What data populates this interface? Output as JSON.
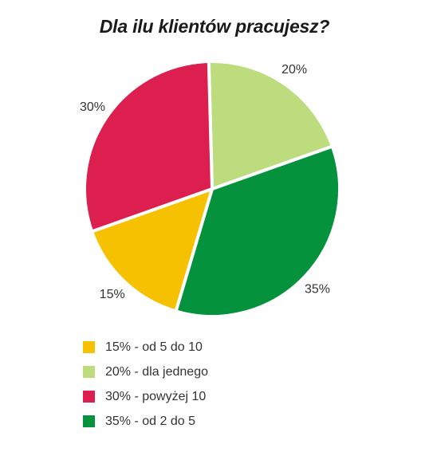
{
  "chart_data": {
    "type": "pie",
    "title": "Dla ilu klientów pracujesz?",
    "slices": [
      {
        "value": 20,
        "label": "20%",
        "color": "#bcdc7d"
      },
      {
        "value": 35,
        "label": "35%",
        "color": "#04923c"
      },
      {
        "value": 15,
        "label": "15%",
        "color": "#f6c100"
      },
      {
        "value": 30,
        "label": "30%",
        "color": "#dc1f4f"
      }
    ],
    "legend": [
      {
        "label": "15% - od 5 do 10",
        "color": "#f6c100"
      },
      {
        "label": "20% - dla jednego",
        "color": "#bcdc7d"
      },
      {
        "label": "30% - powyżej 10",
        "color": "#dc1f4f"
      },
      {
        "label": "35% - od 2 do 5",
        "color": "#04923c"
      }
    ],
    "legend_position": "bottom-left"
  }
}
